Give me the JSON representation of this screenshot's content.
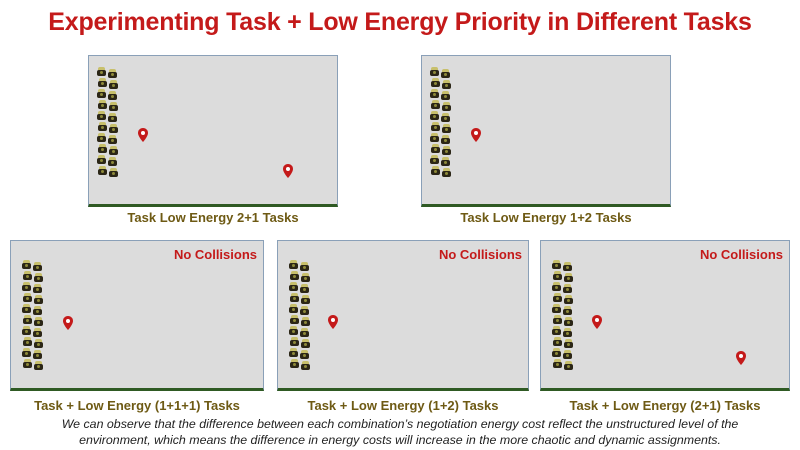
{
  "title": "Experimenting Task + Low Energy Priority in Different Tasks",
  "colors": {
    "title": "#c41a1a",
    "panel_label": "#6e5a14",
    "badge": "#c41a1a",
    "panel_bg": "#dcdcdc",
    "marker": "#c41a1a"
  },
  "icons": {
    "robot": "robot-icon",
    "marker": "map-pin-icon"
  },
  "panels": [
    {
      "label": "Task Low Energy 2+1 Tasks",
      "badge": ""
    },
    {
      "label": "Task Low Energy 1+2 Tasks",
      "badge": ""
    },
    {
      "label": "Task + Low Energy (1+1+1) Tasks",
      "badge": "No Collisions"
    },
    {
      "label": "Task + Low Energy (1+2) Tasks",
      "badge": "No Collisions"
    },
    {
      "label": "Task + Low Energy (2+1) Tasks",
      "badge": "No Collisions"
    }
  ],
  "footnote": {
    "line1": "We can observe that the difference between each combination’s negotiation energy cost reflect the unstructured level of the",
    "line2": "environment, which means the difference in energy costs will increase in the more chaotic and dynamic assignments."
  }
}
